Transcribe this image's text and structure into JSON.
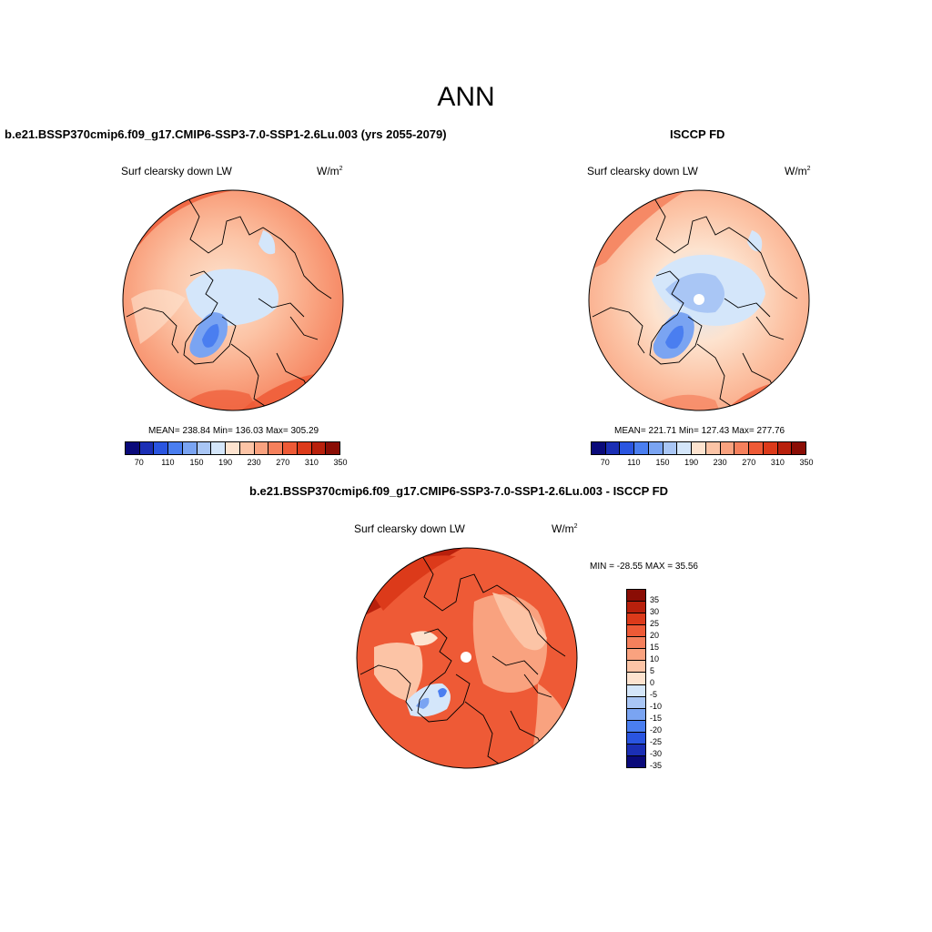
{
  "page": {
    "title": "ANN"
  },
  "panels": [
    {
      "title": "b.e21.BSSP370cmip6.f09_g17.CMIP6-SSP3-7.0-SSP1-2.6Lu.003 (yrs 2055-2079)",
      "variable": "Surf clearsky down LW",
      "units": "W/m",
      "units_sup": "2",
      "stats": "MEAN= 238.84  Min= 136.03  Max= 305.29"
    },
    {
      "title": "ISCCP FD",
      "variable": "Surf clearsky down LW",
      "units": "W/m",
      "units_sup": "2",
      "stats": "MEAN= 221.71  Min= 127.43  Max= 277.76"
    },
    {
      "title": "b.e21.BSSP370cmip6.f09_g17.CMIP6-SSP3-7.0-SSP1-2.6Lu.003 - ISCCP FD",
      "variable": "Surf clearsky down LW",
      "units": "W/m",
      "units_sup": "2",
      "stats": "MIN = -28.55 MAX =  35.56"
    }
  ],
  "colorbar_abs": {
    "colors": [
      "#0a0a7a",
      "#1b2fb5",
      "#2a55e0",
      "#4a7ef0",
      "#7aa4f2",
      "#a9c6f5",
      "#d4e6fa",
      "#fde3cf",
      "#fcc4a6",
      "#f9a27f",
      "#f5805c",
      "#ee5a36",
      "#dc3a1a",
      "#b8200c",
      "#8a0d05"
    ],
    "tick_labels": [
      "70",
      "110",
      "150",
      "190",
      "230",
      "270",
      "310",
      "350"
    ]
  },
  "colorbar_diff": {
    "colors_top_to_bottom": [
      "#8a0d05",
      "#b8200c",
      "#dc3a1a",
      "#ee5a36",
      "#f5805c",
      "#f9a27f",
      "#fcc4a6",
      "#fde3cf",
      "#d4e6fa",
      "#a9c6f5",
      "#7aa4f2",
      "#4a7ef0",
      "#2a55e0",
      "#1b2fb5",
      "#0a0a7a"
    ],
    "tick_labels": [
      "35",
      "30",
      "25",
      "20",
      "15",
      "10",
      "5",
      "0",
      "-5",
      "-10",
      "-15",
      "-20",
      "-25",
      "-30",
      "-35"
    ]
  }
}
